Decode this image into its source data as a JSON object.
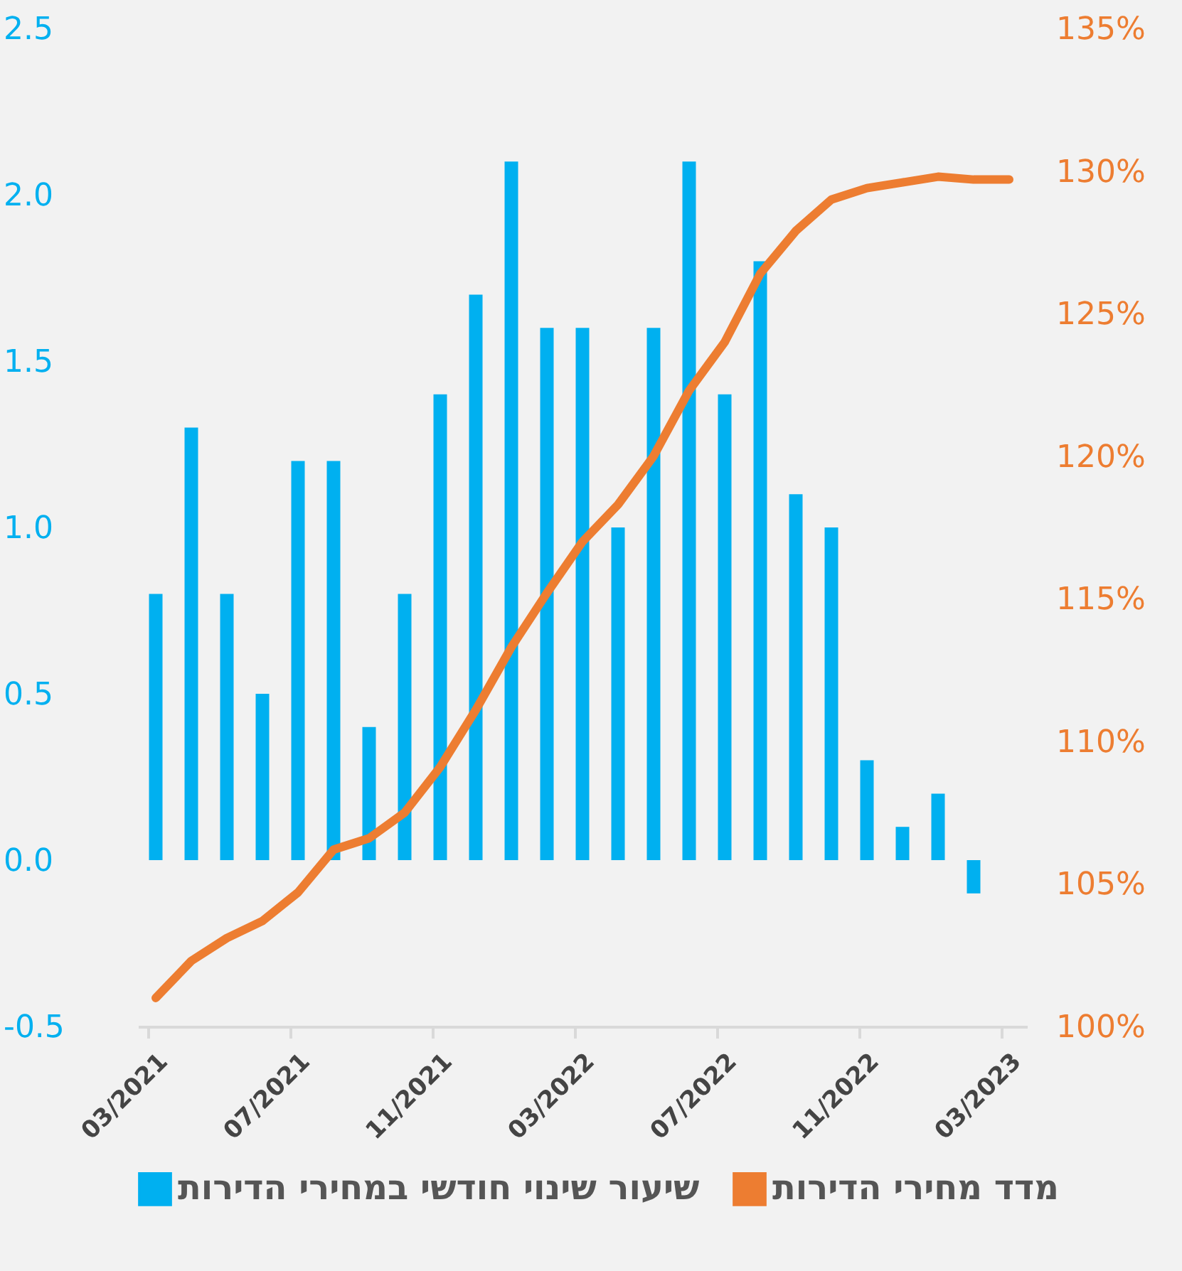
{
  "chart_data": {
    "type": "bar",
    "categories": [
      "03/2021",
      null,
      null,
      null,
      "07/2021",
      null,
      null,
      null,
      "11/2021",
      null,
      null,
      null,
      "03/2022",
      null,
      null,
      null,
      "07/2022",
      null,
      null,
      null,
      "11/2022",
      null,
      null,
      null,
      "03/2023"
    ],
    "series": [
      {
        "name": "שיעור שינוי חודשי במחירי הדירות",
        "color": "#00b0f0",
        "values": [
          0.8,
          1.3,
          0.8,
          0.5,
          1.2,
          1.2,
          0.4,
          0.8,
          1.4,
          1.7,
          2.1,
          1.6,
          1.6,
          1.0,
          1.6,
          2.1,
          1.4,
          1.8,
          1.1,
          1.0,
          0.3,
          0.1,
          0.2,
          -0.1,
          0.0
        ]
      },
      {
        "name": "מדד מחירי הדירות",
        "type": "line",
        "axis": "y2",
        "color": "#ed7d31",
        "values": [
          101.0,
          102.3,
          103.1,
          103.7,
          104.7,
          106.2,
          106.6,
          107.5,
          109.1,
          111.1,
          113.3,
          115.2,
          117.0,
          118.3,
          120.0,
          122.3,
          124.0,
          126.4,
          127.9,
          129.0,
          129.4,
          129.6,
          129.8,
          129.7,
          129.7
        ]
      }
    ],
    "ylim": [
      -0.5,
      2.5
    ],
    "yticks": [
      {
        "value": -0.5,
        "label": "-0.5"
      },
      {
        "value": 0,
        "label": "0.0"
      },
      {
        "value": 0.5,
        "label": "0.5"
      },
      {
        "value": 1,
        "label": "1.0"
      },
      {
        "value": 1.5,
        "label": "1.5"
      },
      {
        "value": 2,
        "label": "2.0"
      },
      {
        "value": 2.5,
        "label": "2.5"
      }
    ],
    "y2lim": [
      100,
      135
    ],
    "y2ticks": [
      {
        "value": 100,
        "label": "100%"
      },
      {
        "value": 105,
        "label": "105%"
      },
      {
        "value": 110,
        "label": "110%"
      },
      {
        "value": 115,
        "label": "115%"
      },
      {
        "value": 120,
        "label": "120%"
      },
      {
        "value": 125,
        "label": "125%"
      },
      {
        "value": 130,
        "label": "130%"
      },
      {
        "value": 135,
        "label": "135%"
      }
    ],
    "grid": false,
    "legend": "bottom",
    "line_style": "solid",
    "marker": "none"
  }
}
